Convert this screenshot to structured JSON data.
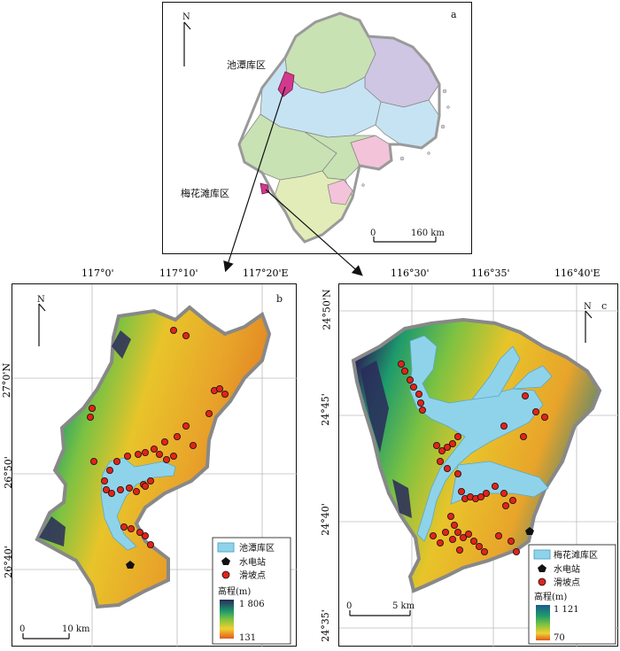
{
  "panel_a": {
    "label": "a",
    "north": "N",
    "reservoir_chitan_label": "池潭库区",
    "reservoir_meihuatan_label": "梅花滩库区",
    "scale_start": "0",
    "scale_end": "160 km"
  },
  "panel_b": {
    "label": "b",
    "north": "N",
    "top_ticks": [
      "117°0'",
      "117°10'",
      "117°20'E"
    ],
    "left_ticks": [
      "27°0'N",
      "26°50'",
      "26°40'"
    ],
    "legend": {
      "reservoir": "池潭库区",
      "station": "水电站",
      "landslide": "滑坡点",
      "elevation_title": "高程(m)",
      "elev_max": "1 806",
      "elev_min": "131"
    },
    "scale_start": "0",
    "scale_end": "10 km"
  },
  "panel_c": {
    "label": "c",
    "north": "N",
    "top_ticks": [
      "116°30'",
      "116°35'",
      "116°40'E"
    ],
    "left_ticks": [
      "24°50'N",
      "24°45'",
      "24°40'",
      "24°35'"
    ],
    "legend": {
      "reservoir": "梅花滩库区",
      "station": "水电站",
      "landslide": "滑坡点",
      "elevation_title": "高程(m)",
      "elev_max": "1 121",
      "elev_min": "70"
    },
    "scale_start": "0",
    "scale_end": "5 km"
  },
  "colors": {
    "water": "#8fd3ea",
    "landslide": "#e2231a",
    "highlight": "#d13a8c"
  }
}
